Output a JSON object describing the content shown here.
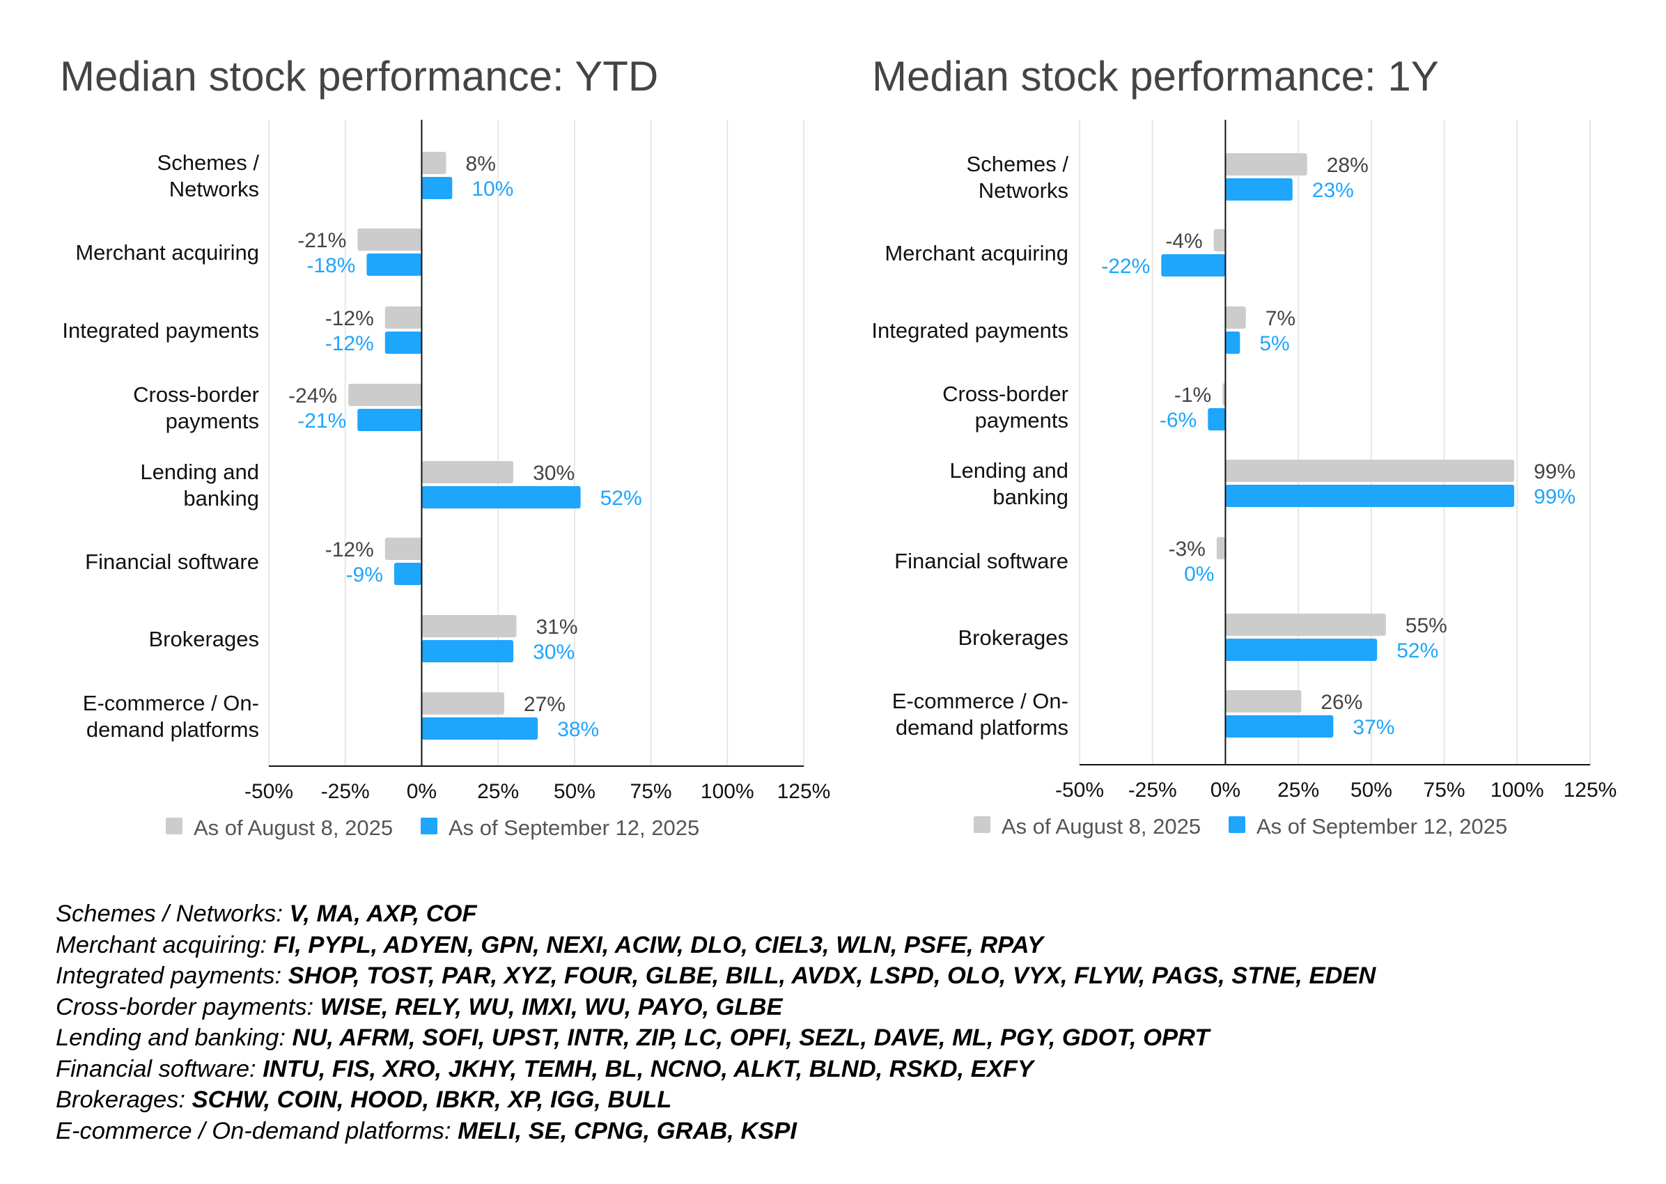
{
  "colors": {
    "aug": "#cccccc",
    "sep": "#1ea5fc",
    "axis": "#111111",
    "grid": "#e6e6e6"
  },
  "chart_data": [
    {
      "type": "bar",
      "orientation": "horizontal",
      "title": "Median stock performance: YTD",
      "categories": [
        [
          "Schemes /",
          "Networks"
        ],
        [
          "Merchant acquiring"
        ],
        [
          "Integrated payments"
        ],
        [
          "Cross-border",
          "payments"
        ],
        [
          "Lending and",
          "banking"
        ],
        [
          "Financial software"
        ],
        [
          "Brokerages"
        ],
        [
          "E-commerce / On-",
          "demand platforms"
        ]
      ],
      "series": [
        {
          "name": "As of August 8, 2025",
          "values": [
            8,
            -21,
            -12,
            -24,
            30,
            -12,
            31,
            27
          ],
          "labels": [
            "8%",
            "-21%",
            "-12%",
            "-24%",
            "30%",
            "-12%",
            "31%",
            "27%"
          ]
        },
        {
          "name": "As of September 12, 2025",
          "values": [
            10,
            -18,
            -12,
            -21,
            52,
            -9,
            30,
            38
          ],
          "labels": [
            "10%",
            "-18%",
            "-12%",
            "-21%",
            "52%",
            "-9%",
            "30%",
            "38%"
          ]
        }
      ],
      "xlim": [
        -50,
        125
      ],
      "ticks": [
        -50,
        -25,
        0,
        25,
        50,
        75,
        100,
        125
      ],
      "tick_labels": [
        "-50%",
        "-25%",
        "0%",
        "25%",
        "50%",
        "75%",
        "100%",
        "125%"
      ],
      "grid": true,
      "legend": "bottom"
    },
    {
      "type": "bar",
      "orientation": "horizontal",
      "title": "Median stock performance: 1Y",
      "categories": [
        [
          "Schemes /",
          "Networks"
        ],
        [
          "Merchant acquiring"
        ],
        [
          "Integrated payments"
        ],
        [
          "Cross-border",
          "payments"
        ],
        [
          "Lending and",
          "banking"
        ],
        [
          "Financial software"
        ],
        [
          "Brokerages"
        ],
        [
          "E-commerce / On-",
          "demand platforms"
        ]
      ],
      "series": [
        {
          "name": "As of August 8, 2025",
          "values": [
            28,
            -4,
            7,
            -1,
            99,
            -3,
            55,
            26
          ],
          "labels": [
            "28%",
            "-4%",
            "7%",
            "-1%",
            "99%",
            "-3%",
            "55%",
            "26%"
          ]
        },
        {
          "name": "As of September 12, 2025",
          "values": [
            23,
            -22,
            5,
            -6,
            99,
            0,
            52,
            37
          ],
          "labels": [
            "23%",
            "-22%",
            "5%",
            "-6%",
            "99%",
            "0%",
            "52%",
            "37%"
          ]
        }
      ],
      "xlim": [
        -50,
        125
      ],
      "ticks": [
        -50,
        -25,
        0,
        25,
        50,
        75,
        100,
        125
      ],
      "tick_labels": [
        "-50%",
        "-25%",
        "0%",
        "25%",
        "50%",
        "75%",
        "100%",
        "125%"
      ],
      "grid": true,
      "legend": "bottom"
    }
  ],
  "footnote": [
    {
      "category": "Schemes / Networks: ",
      "tickers": "V, MA, AXP, COF"
    },
    {
      "category": "Merchant acquiring: ",
      "tickers": "FI, PYPL, ADYEN, GPN, NEXI, ACIW, DLO, CIEL3, WLN, PSFE, RPAY"
    },
    {
      "category": "Integrated payments: ",
      "tickers": "SHOP, TOST, PAR, XYZ, FOUR, GLBE, BILL, AVDX, LSPD, OLO, VYX, FLYW, PAGS, STNE, EDEN"
    },
    {
      "category": "Cross-border payments: ",
      "tickers": "WISE, RELY, WU, IMXI, WU, PAYO, GLBE"
    },
    {
      "category": "Lending and banking: ",
      "tickers": "NU, AFRM, SOFI, UPST, INTR, ZIP, LC, OPFI, SEZL, DAVE, ML, PGY, GDOT, OPRT"
    },
    {
      "category": "Financial software: ",
      "tickers": "INTU, FIS, XRO, JKHY, TEMH, BL, NCNO, ALKT, BLND, RSKD, EXFY"
    },
    {
      "category": "Brokerages: ",
      "tickers": "SCHW, COIN, HOOD, IBKR, XP, IGG, BULL"
    },
    {
      "category": "E-commerce / On-demand platforms: ",
      "tickers": "MELI, SE, CPNG, GRAB, KSPI"
    }
  ]
}
